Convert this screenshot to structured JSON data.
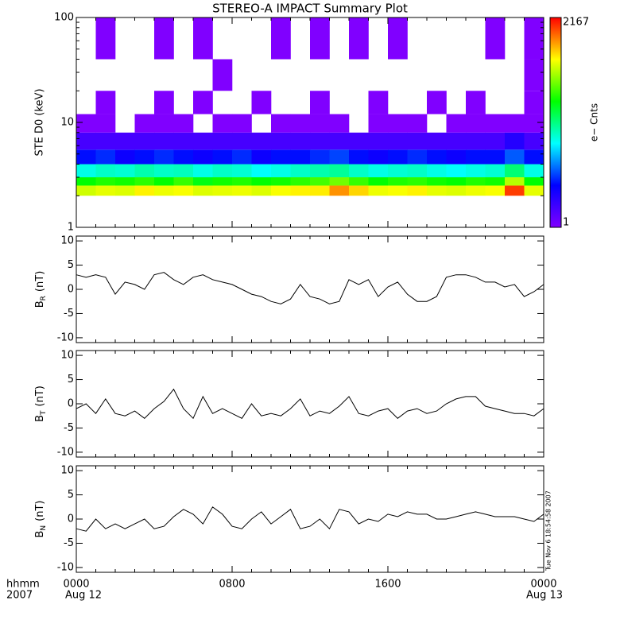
{
  "title": "STEREO-A IMPACT Summary Plot",
  "time_axis": {
    "unit_label": "hhmm",
    "year": "2007",
    "dates": [
      "Aug 12",
      "Aug 13"
    ]
  },
  "timestamp": "Tue Nov  6 18:54:58 2007",
  "chart_data": [
    {
      "type": "heatmap",
      "ylabel": "STE D0 (keV)",
      "ylog": true,
      "ylim": [
        1,
        100
      ],
      "yticks": [
        1,
        10,
        100
      ],
      "xlim": [
        0,
        24
      ],
      "xticks": [
        0,
        8,
        16,
        24
      ],
      "x_edges": [
        0,
        1,
        2,
        3,
        4,
        5,
        6,
        7,
        8,
        9,
        10,
        11,
        12,
        13,
        14,
        15,
        16,
        17,
        18,
        19,
        20,
        21,
        22,
        23,
        24
      ],
      "y_edges": [
        2,
        2.5,
        3,
        4,
        5.5,
        8,
        12,
        20,
        40,
        100
      ],
      "values": [
        [
          350,
          400,
          380,
          500,
          420,
          450,
          380,
          400,
          420,
          380,
          450,
          500,
          520,
          900,
          600,
          420,
          450,
          500,
          400,
          380,
          420,
          450,
          1500,
          400
        ],
        [
          100,
          120,
          110,
          130,
          100,
          140,
          90,
          110,
          120,
          100,
          110,
          130,
          150,
          200,
          140,
          100,
          120,
          130,
          110,
          100,
          120,
          110,
          300,
          100
        ],
        [
          25,
          30,
          28,
          35,
          30,
          32,
          25,
          30,
          28,
          22,
          25,
          30,
          35,
          40,
          30,
          25,
          28,
          30,
          25,
          22,
          25,
          28,
          50,
          25
        ],
        [
          5,
          6,
          4,
          5,
          6,
          5,
          4,
          5,
          6,
          4,
          5,
          5,
          6,
          7,
          5,
          4,
          5,
          6,
          5,
          4,
          5,
          5,
          8,
          5
        ],
        [
          2,
          2,
          2,
          2,
          2,
          2,
          2,
          2,
          2,
          2,
          2,
          2,
          2,
          2,
          2,
          2,
          2,
          2,
          2,
          2,
          2,
          2,
          3,
          2
        ],
        [
          1,
          1,
          null,
          1,
          1,
          1,
          null,
          1,
          1,
          null,
          1,
          1,
          1,
          1,
          null,
          1,
          1,
          1,
          null,
          1,
          1,
          1,
          1,
          1
        ],
        [
          null,
          1,
          null,
          null,
          1,
          null,
          1,
          null,
          null,
          1,
          null,
          null,
          1,
          null,
          null,
          1,
          null,
          null,
          1,
          null,
          1,
          null,
          null,
          1
        ],
        [
          null,
          null,
          null,
          null,
          null,
          null,
          null,
          1,
          null,
          null,
          null,
          null,
          null,
          null,
          null,
          null,
          null,
          null,
          null,
          null,
          null,
          null,
          null,
          1
        ],
        [
          null,
          1,
          null,
          null,
          1,
          null,
          1,
          null,
          null,
          null,
          1,
          null,
          1,
          null,
          1,
          null,
          1,
          null,
          null,
          null,
          null,
          1,
          null,
          1
        ]
      ],
      "colorbar": {
        "label": "e− Cnts",
        "log": true,
        "lim": [
          1,
          2167
        ],
        "ticks": [
          1,
          2167
        ],
        "colors": [
          "#8000ff",
          "#0000ff",
          "#00ffff",
          "#00ff00",
          "#ffff00",
          "#ff0000"
        ]
      }
    },
    {
      "type": "line",
      "ylabel": {
        "base": "B",
        "sub": "R",
        "unit": "(nT)"
      },
      "color": "#000000",
      "ylim": [
        -11,
        11
      ],
      "yticks": [
        -10,
        -5,
        0,
        5,
        10
      ],
      "xlim": [
        0,
        24
      ],
      "xticks": [
        0,
        8,
        16,
        24
      ],
      "x": [
        0,
        0.5,
        1,
        1.5,
        2,
        2.5,
        3,
        3.5,
        4,
        4.5,
        5,
        5.5,
        6,
        6.5,
        7,
        7.5,
        8,
        8.5,
        9,
        9.5,
        10,
        10.5,
        11,
        11.5,
        12,
        12.5,
        13,
        13.5,
        14,
        14.5,
        15,
        15.5,
        16,
        16.5,
        17,
        17.5,
        18,
        18.5,
        19,
        19.5,
        20,
        20.5,
        21,
        21.5,
        22,
        22.5,
        23,
        23.5,
        24
      ],
      "values": [
        3,
        2.5,
        3,
        2.5,
        -1,
        1.5,
        1,
        0,
        3,
        3.5,
        2,
        1,
        2.5,
        3,
        2,
        1.5,
        1,
        0,
        -1,
        -1.5,
        -2.5,
        -3,
        -2,
        1,
        -1.5,
        -2,
        -3,
        -2.5,
        2,
        1,
        2,
        -1.5,
        0.5,
        1.5,
        -1,
        -2.5,
        -2.5,
        -1.5,
        2.5,
        3,
        3,
        2.5,
        1.5,
        1.5,
        0.5,
        1,
        -1.5,
        -0.5,
        1
      ]
    },
    {
      "type": "line",
      "ylabel": {
        "base": "B",
        "sub": "T",
        "unit": "(nT)"
      },
      "color": "#000000",
      "ylim": [
        -11,
        11
      ],
      "yticks": [
        -10,
        -5,
        0,
        5,
        10
      ],
      "xlim": [
        0,
        24
      ],
      "xticks": [
        0,
        8,
        16,
        24
      ],
      "x": [
        0,
        0.5,
        1,
        1.5,
        2,
        2.5,
        3,
        3.5,
        4,
        4.5,
        5,
        5.5,
        6,
        6.5,
        7,
        7.5,
        8,
        8.5,
        9,
        9.5,
        10,
        10.5,
        11,
        11.5,
        12,
        12.5,
        13,
        13.5,
        14,
        14.5,
        15,
        15.5,
        16,
        16.5,
        17,
        17.5,
        18,
        18.5,
        19,
        19.5,
        20,
        20.5,
        21,
        21.5,
        22,
        22.5,
        23,
        23.5,
        24
      ],
      "values": [
        -1,
        0,
        -2,
        1,
        -2,
        -2.5,
        -1.5,
        -3,
        -1,
        0.5,
        3,
        -1,
        -3,
        1.5,
        -2,
        -1,
        -2,
        -3,
        0,
        -2.5,
        -2,
        -2.5,
        -1,
        1,
        -2.5,
        -1.5,
        -2,
        -0.5,
        1.5,
        -2,
        -2.5,
        -1.5,
        -1,
        -3,
        -1.5,
        -1,
        -2,
        -1.5,
        0,
        1,
        1.5,
        1.5,
        -0.5,
        -1,
        -1.5,
        -2,
        -2,
        -2.5,
        -1
      ]
    },
    {
      "type": "line",
      "ylabel": {
        "base": "B",
        "sub": "N",
        "unit": "(nT)"
      },
      "color": "#000000",
      "ylim": [
        -11,
        11
      ],
      "yticks": [
        -10,
        -5,
        0,
        5,
        10
      ],
      "xlim": [
        0,
        24
      ],
      "xticks": [
        {
          "value": 0,
          "label": "0000"
        },
        {
          "value": 8,
          "label": "0800"
        },
        {
          "value": 16,
          "label": "1600"
        },
        {
          "value": 24,
          "label": "0000"
        }
      ],
      "x": [
        0,
        0.5,
        1,
        1.5,
        2,
        2.5,
        3,
        3.5,
        4,
        4.5,
        5,
        5.5,
        6,
        6.5,
        7,
        7.5,
        8,
        8.5,
        9,
        9.5,
        10,
        10.5,
        11,
        11.5,
        12,
        12.5,
        13,
        13.5,
        14,
        14.5,
        15,
        15.5,
        16,
        16.5,
        17,
        17.5,
        18,
        18.5,
        19,
        19.5,
        20,
        20.5,
        21,
        21.5,
        22,
        22.5,
        23,
        23.5,
        24
      ],
      "values": [
        -2,
        -2.5,
        0,
        -2,
        -1,
        -2,
        -1,
        0,
        -2,
        -1.5,
        0.5,
        2,
        1,
        -1,
        2.5,
        1,
        -1.5,
        -2,
        0,
        1.5,
        -1,
        0.5,
        2,
        -2,
        -1.5,
        0,
        -2,
        2,
        1.5,
        -1,
        0,
        -0.5,
        1,
        0.5,
        1.5,
        1,
        1,
        0,
        0,
        0.5,
        1,
        1.5,
        1,
        0.5,
        0.5,
        0.5,
        0,
        -0.5,
        1
      ]
    }
  ]
}
